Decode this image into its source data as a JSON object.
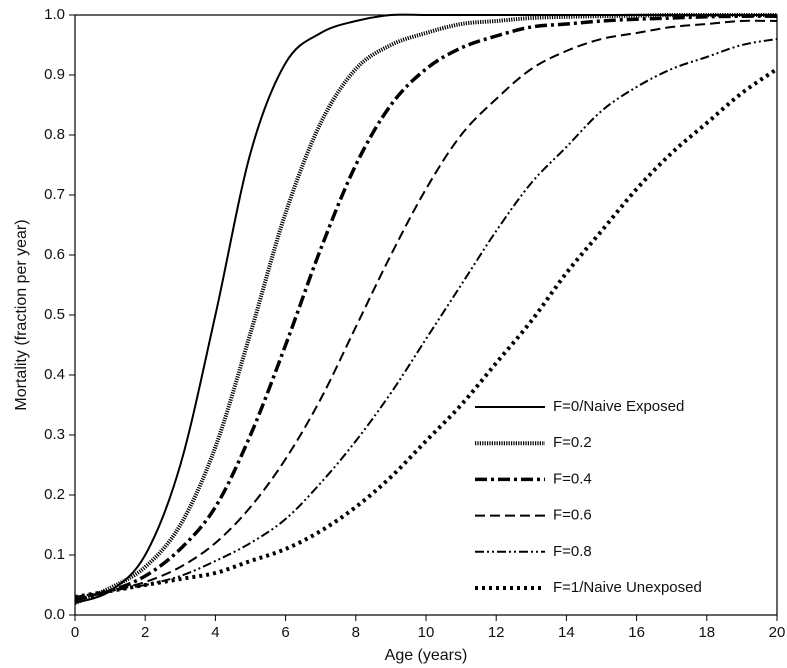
{
  "chart_data": {
    "type": "line",
    "x_label": "Age (years)",
    "y_label": "Mortality (fraction per year)",
    "x": [
      0,
      1,
      2,
      3,
      4,
      5,
      6,
      7,
      8,
      9,
      10,
      11,
      12,
      13,
      14,
      15,
      16,
      17,
      18,
      19,
      20
    ],
    "series": [
      {
        "name": "F=0/Naive Exposed",
        "color": "#000000",
        "dash": "none",
        "width": 2,
        "values": [
          0.02,
          0.04,
          0.1,
          0.25,
          0.5,
          0.77,
          0.92,
          0.97,
          0.99,
          1.0,
          1.0,
          1.0,
          1.0,
          1.0,
          1.0,
          1.0,
          1.0,
          1.0,
          1.0,
          1.0,
          1.0
        ]
      },
      {
        "name": "F=0.2",
        "color": "#000000",
        "dash": "1.2 1.2",
        "width": 4,
        "values": [
          0.02,
          0.045,
          0.08,
          0.15,
          0.28,
          0.47,
          0.67,
          0.82,
          0.91,
          0.95,
          0.97,
          0.985,
          0.99,
          0.995,
          0.997,
          0.998,
          0.999,
          1.0,
          1.0,
          1.0,
          1.0
        ]
      },
      {
        "name": "F=0.4",
        "color": "#000000",
        "dash": "12 4 3 4",
        "width": 3.5,
        "values": [
          0.025,
          0.04,
          0.065,
          0.11,
          0.18,
          0.3,
          0.45,
          0.61,
          0.75,
          0.85,
          0.91,
          0.945,
          0.965,
          0.98,
          0.985,
          0.99,
          0.993,
          0.995,
          0.997,
          0.998,
          0.998
        ]
      },
      {
        "name": "F=0.6",
        "color": "#000000",
        "dash": "10 5",
        "width": 2,
        "values": [
          0.025,
          0.04,
          0.055,
          0.08,
          0.12,
          0.18,
          0.26,
          0.36,
          0.48,
          0.6,
          0.71,
          0.8,
          0.86,
          0.91,
          0.94,
          0.96,
          0.97,
          0.98,
          0.985,
          0.99,
          0.99
        ]
      },
      {
        "name": "F=0.8",
        "color": "#000000",
        "dash": "9 3 2 3 2 3",
        "width": 2,
        "values": [
          0.03,
          0.04,
          0.05,
          0.065,
          0.09,
          0.12,
          0.16,
          0.22,
          0.29,
          0.37,
          0.46,
          0.55,
          0.64,
          0.72,
          0.78,
          0.84,
          0.88,
          0.91,
          0.93,
          0.95,
          0.96
        ]
      },
      {
        "name": "F=1/Naive Unexposed",
        "color": "#000000",
        "dash": "3 4",
        "width": 4,
        "values": [
          0.03,
          0.04,
          0.05,
          0.06,
          0.07,
          0.09,
          0.11,
          0.14,
          0.18,
          0.23,
          0.29,
          0.35,
          0.42,
          0.49,
          0.57,
          0.64,
          0.71,
          0.77,
          0.82,
          0.87,
          0.91
        ]
      }
    ],
    "xlim": [
      0,
      20
    ],
    "xticks": [
      0,
      2,
      4,
      6,
      8,
      10,
      12,
      14,
      16,
      18,
      20
    ],
    "ylim": [
      0,
      1
    ],
    "yticks": [
      {
        "value": 0,
        "label": "0.0"
      },
      {
        "value": 0.1,
        "label": "0.1"
      },
      {
        "value": 0.2,
        "label": "0.2"
      },
      {
        "value": 0.3,
        "label": "0.3"
      },
      {
        "value": 0.4,
        "label": "0.4"
      },
      {
        "value": 0.5,
        "label": "0.5"
      },
      {
        "value": 0.6,
        "label": "0.6"
      },
      {
        "value": 0.7,
        "label": "0.7"
      },
      {
        "value": 0.8,
        "label": "0.8"
      },
      {
        "value": 0.9,
        "label": "0.9"
      },
      {
        "value": 1,
        "label": "1.0"
      }
    ],
    "legend": "lower-right"
  }
}
